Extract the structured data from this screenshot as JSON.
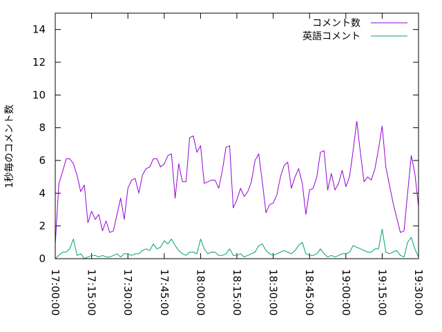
{
  "chart_data": {
    "type": "line",
    "title": "",
    "xlabel": "",
    "ylabel": "1秒毎のコメント数",
    "x_ticks": [
      "17:00:00",
      "17:15:00",
      "17:30:00",
      "17:45:00",
      "18:00:00",
      "18:15:00",
      "18:30:00",
      "18:45:00",
      "19:00:00",
      "19:15:00",
      "19:30:00"
    ],
    "y_ticks": [
      "0",
      "2",
      "4",
      "6",
      "8",
      "10",
      "12",
      "14"
    ],
    "xlim_minutes": [
      0,
      150
    ],
    "ylim": [
      0,
      15
    ],
    "grid": false,
    "legend_position": "top-right",
    "series": [
      {
        "name": "コメント数",
        "color": "#9400d3",
        "values": [
          0.9,
          4.6,
          5.3,
          6.1,
          6.1,
          5.8,
          5.1,
          4.1,
          4.5,
          2.2,
          2.9,
          2.4,
          2.7,
          1.7,
          2.3,
          1.6,
          1.7,
          2.7,
          3.7,
          2.4,
          4.3,
          4.8,
          4.9,
          4.0,
          5.1,
          5.5,
          5.6,
          6.1,
          6.1,
          5.6,
          5.8,
          6.3,
          6.4,
          3.7,
          5.8,
          4.7,
          4.7,
          7.4,
          7.5,
          6.5,
          6.9,
          4.6,
          4.7,
          4.8,
          4.8,
          4.3,
          5.4,
          6.8,
          6.9,
          3.1,
          3.6,
          4.3,
          3.8,
          4.1,
          4.7,
          6.0,
          6.4,
          4.7,
          2.8,
          3.3,
          3.4,
          3.9,
          5.0,
          5.7,
          5.9,
          4.3,
          5.0,
          5.5,
          4.6,
          2.7,
          4.2,
          4.3,
          5.0,
          6.5,
          6.6,
          4.2,
          5.2,
          4.2,
          4.6,
          5.4,
          4.4,
          5.0,
          6.6,
          8.4,
          6.5,
          4.7,
          5.0,
          4.8,
          5.5,
          6.7,
          8.1,
          5.6,
          4.5,
          3.4,
          2.5,
          1.6,
          1.7,
          4.0,
          6.3,
          5.2,
          3.2
        ]
      },
      {
        "name": "英語コメント",
        "color": "#009e73",
        "values": [
          0.0,
          0.2,
          0.4,
          0.4,
          0.6,
          1.2,
          0.2,
          0.3,
          0.0,
          0.1,
          0.2,
          0.2,
          0.1,
          0.2,
          0.1,
          0.1,
          0.2,
          0.3,
          0.1,
          0.3,
          0.3,
          0.2,
          0.3,
          0.3,
          0.5,
          0.6,
          0.5,
          0.9,
          0.6,
          0.7,
          1.1,
          0.9,
          1.2,
          0.8,
          0.5,
          0.3,
          0.2,
          0.4,
          0.4,
          0.3,
          1.2,
          0.6,
          0.3,
          0.4,
          0.4,
          0.2,
          0.2,
          0.3,
          0.6,
          0.2,
          0.2,
          0.3,
          0.1,
          0.2,
          0.3,
          0.4,
          0.8,
          0.9,
          0.5,
          0.3,
          0.2,
          0.3,
          0.4,
          0.5,
          0.4,
          0.3,
          0.5,
          0.8,
          1.0,
          0.3,
          0.2,
          0.2,
          0.3,
          0.6,
          0.3,
          0.1,
          0.2,
          0.1,
          0.2,
          0.3,
          0.3,
          0.4,
          0.8,
          0.7,
          0.6,
          0.5,
          0.4,
          0.4,
          0.6,
          0.6,
          1.8,
          0.4,
          0.3,
          0.4,
          0.5,
          0.2,
          0.1,
          1.0,
          1.3,
          0.6,
          0.1
        ]
      }
    ]
  }
}
